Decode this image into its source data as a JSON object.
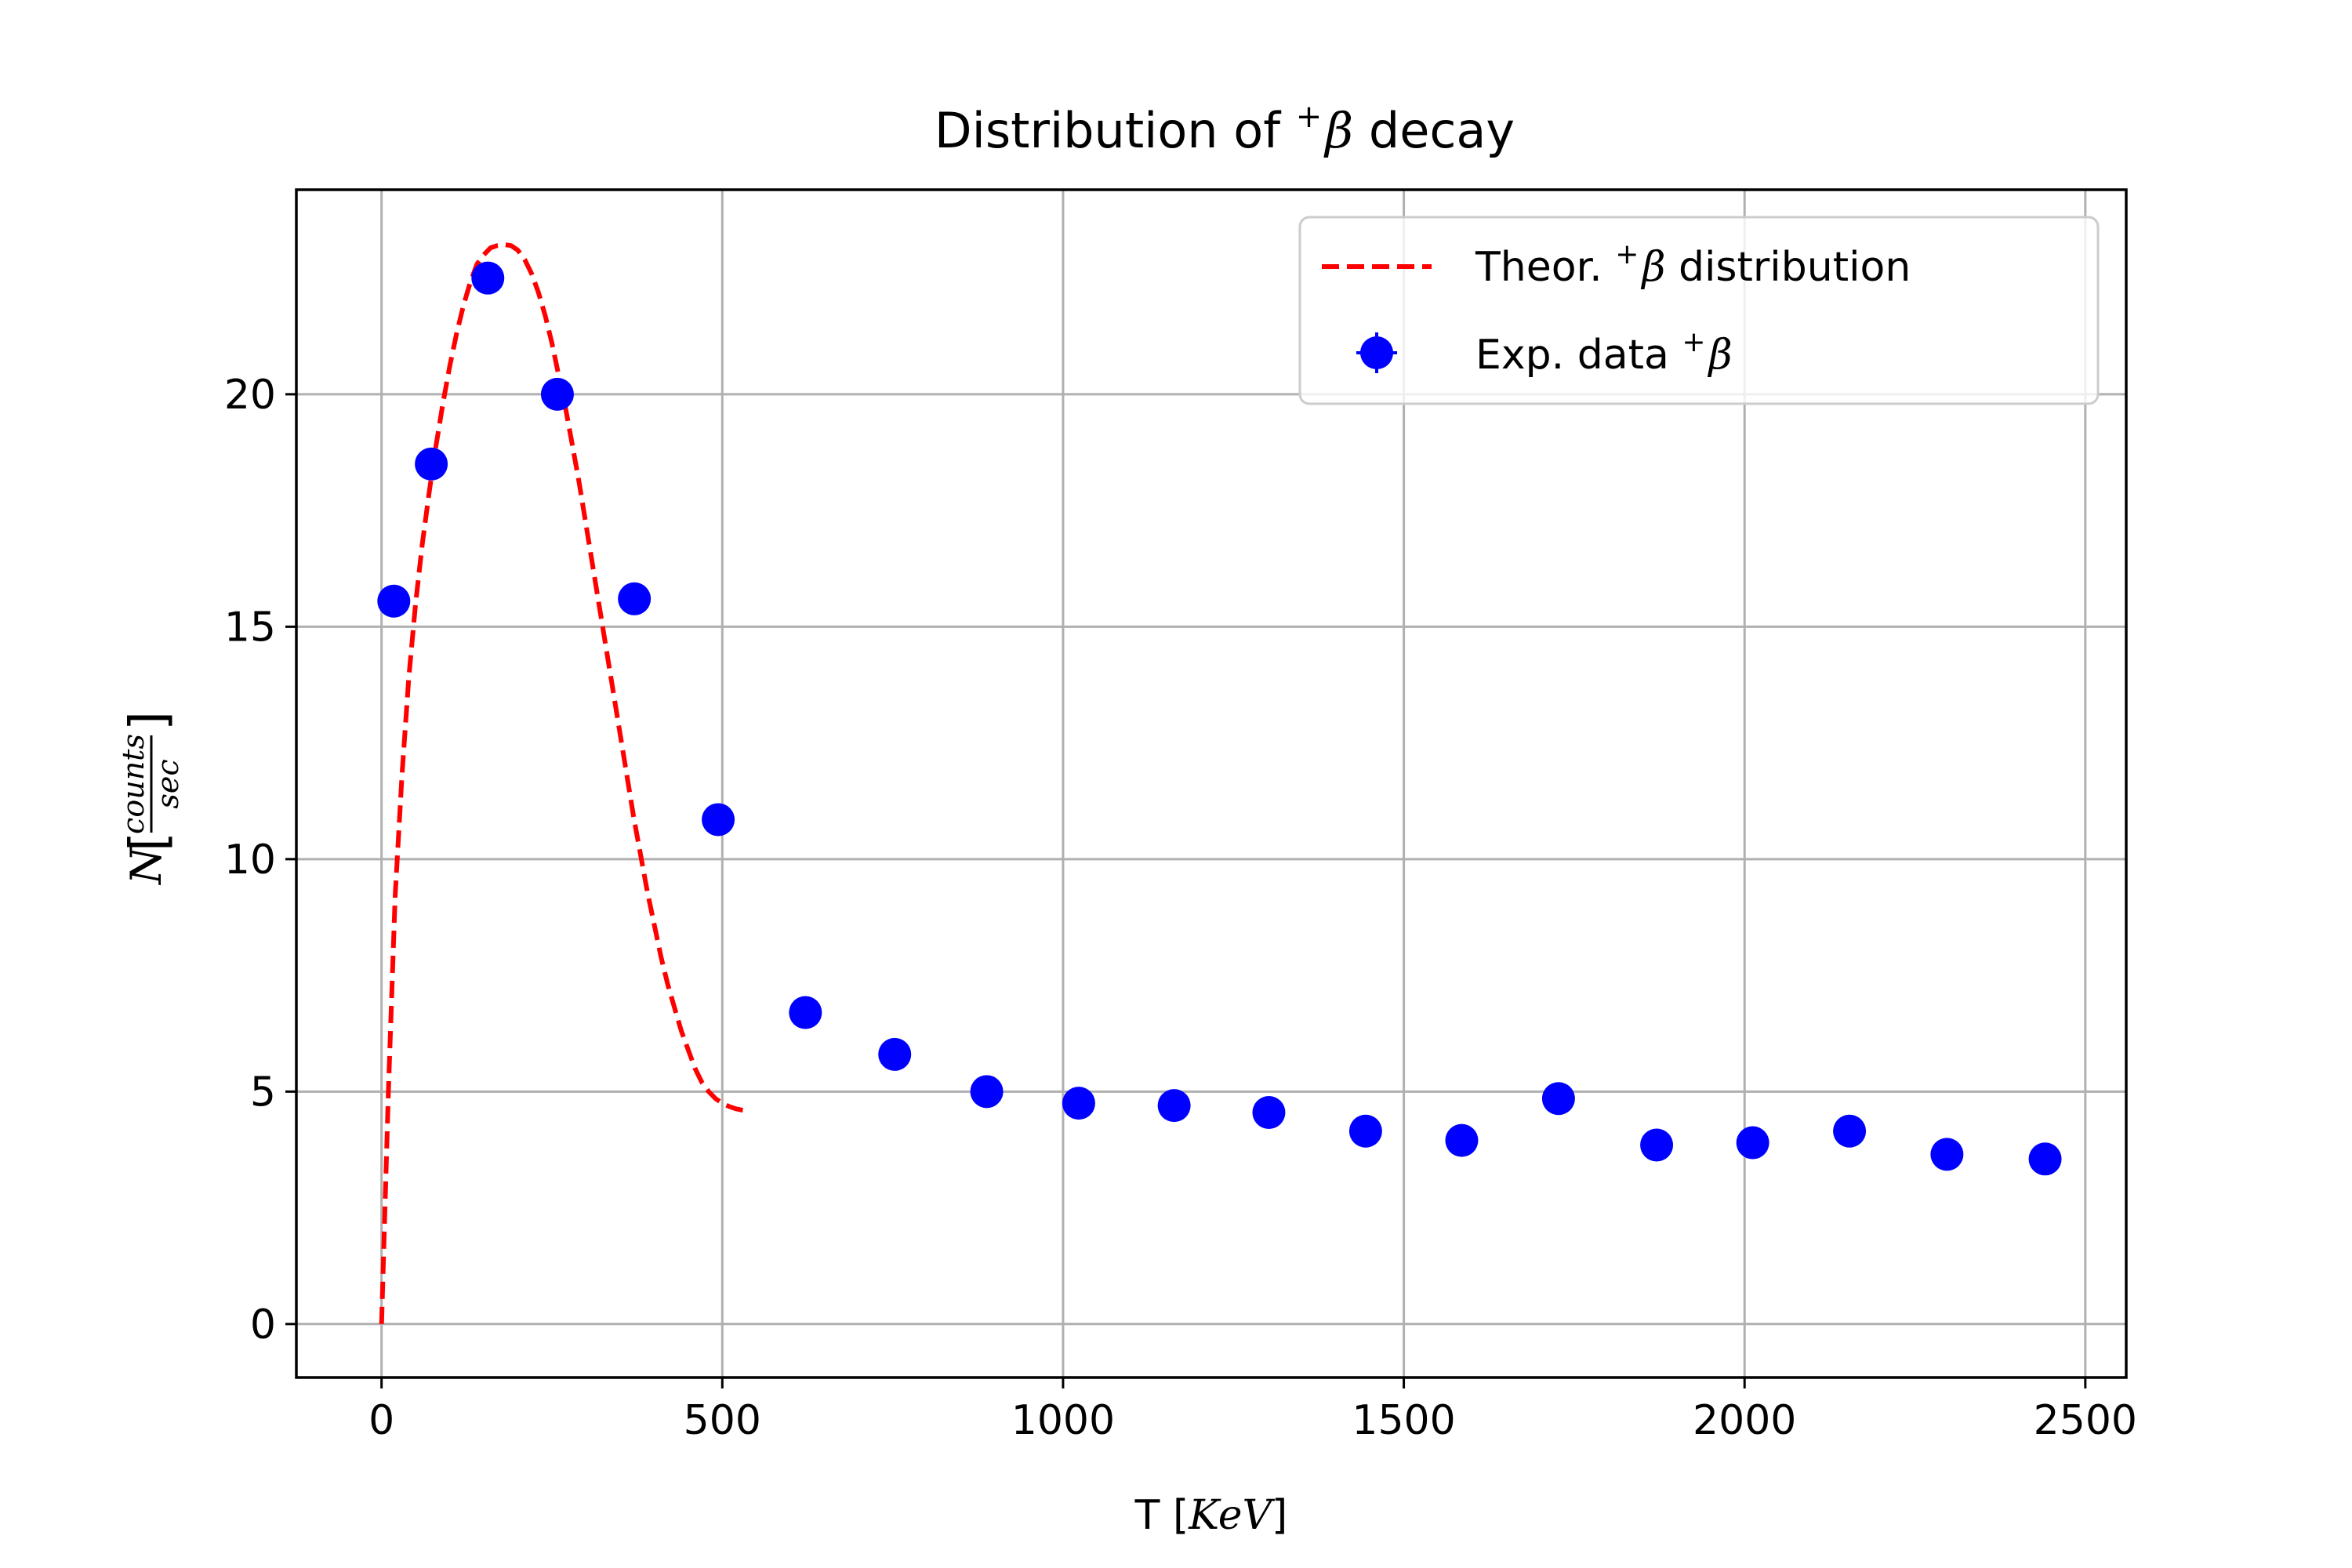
{
  "chart_data": {
    "type": "scatter",
    "title": {
      "prefix": "Distribution of ",
      "sup": "+",
      "greek": "β",
      "suffix": " decay"
    },
    "xlabel": {
      "prefix": "T [",
      "italic": "KeV",
      "suffix": "]"
    },
    "ylabel": {
      "base": "N",
      "num": "counts",
      "den": "sec"
    },
    "xlim": [
      -125,
      2560
    ],
    "ylim": [
      -1.15,
      24.4
    ],
    "xticks": [
      0,
      500,
      1000,
      1500,
      2000,
      2500
    ],
    "yticks": [
      0,
      5,
      10,
      15,
      20
    ],
    "grid": true,
    "legend_position": "top-right",
    "series": [
      {
        "name": "Theor. +β distribution",
        "label": {
          "prefix": "Theor. ",
          "sup": "+",
          "greek": "β",
          "suffix": " distribution"
        },
        "kind": "line",
        "style": "dashed",
        "color": "#ff0000",
        "x": [
          0,
          10,
          20,
          30,
          40,
          50,
          60,
          70,
          80,
          90,
          100,
          110,
          120,
          130,
          140,
          150,
          160,
          170,
          180,
          190,
          200,
          210,
          220,
          230,
          240,
          250,
          260,
          270,
          280,
          290,
          300,
          310,
          320,
          330,
          340,
          350,
          360,
          370,
          380,
          390,
          400,
          410,
          420,
          430,
          440,
          450,
          460,
          470,
          480,
          490,
          500,
          510,
          520,
          530,
          540
        ],
        "y": [
          0,
          5.0,
          9.2,
          11.8,
          13.9,
          15.5,
          16.8,
          17.9,
          18.9,
          19.8,
          20.6,
          21.3,
          21.9,
          22.4,
          22.8,
          23.0,
          23.15,
          23.2,
          23.22,
          23.2,
          23.1,
          22.9,
          22.6,
          22.2,
          21.7,
          21.1,
          20.4,
          19.7,
          18.9,
          18.1,
          17.2,
          16.3,
          15.4,
          14.5,
          13.6,
          12.7,
          11.8,
          10.9,
          10.1,
          9.3,
          8.6,
          7.9,
          7.3,
          6.8,
          6.3,
          5.9,
          5.5,
          5.2,
          5.0,
          4.85,
          4.75,
          4.68,
          4.63,
          4.6,
          4.58
        ]
      },
      {
        "name": "Exp. data +β",
        "label": {
          "prefix": "Exp. data ",
          "sup": "+",
          "greek": "β",
          "suffix": ""
        },
        "kind": "scatter",
        "color": "#0000ff",
        "x": [
          18,
          73,
          156,
          258,
          371,
          494,
          622,
          753,
          888,
          1023,
          1163,
          1302,
          1444,
          1585,
          1727,
          1871,
          2012,
          2154,
          2297,
          2441
        ],
        "y": [
          15.55,
          18.5,
          22.5,
          20.0,
          15.6,
          10.85,
          6.7,
          5.8,
          5.0,
          4.75,
          4.7,
          4.55,
          4.15,
          3.95,
          4.85,
          3.85,
          3.9,
          4.15,
          3.65,
          3.55
        ]
      }
    ]
  }
}
